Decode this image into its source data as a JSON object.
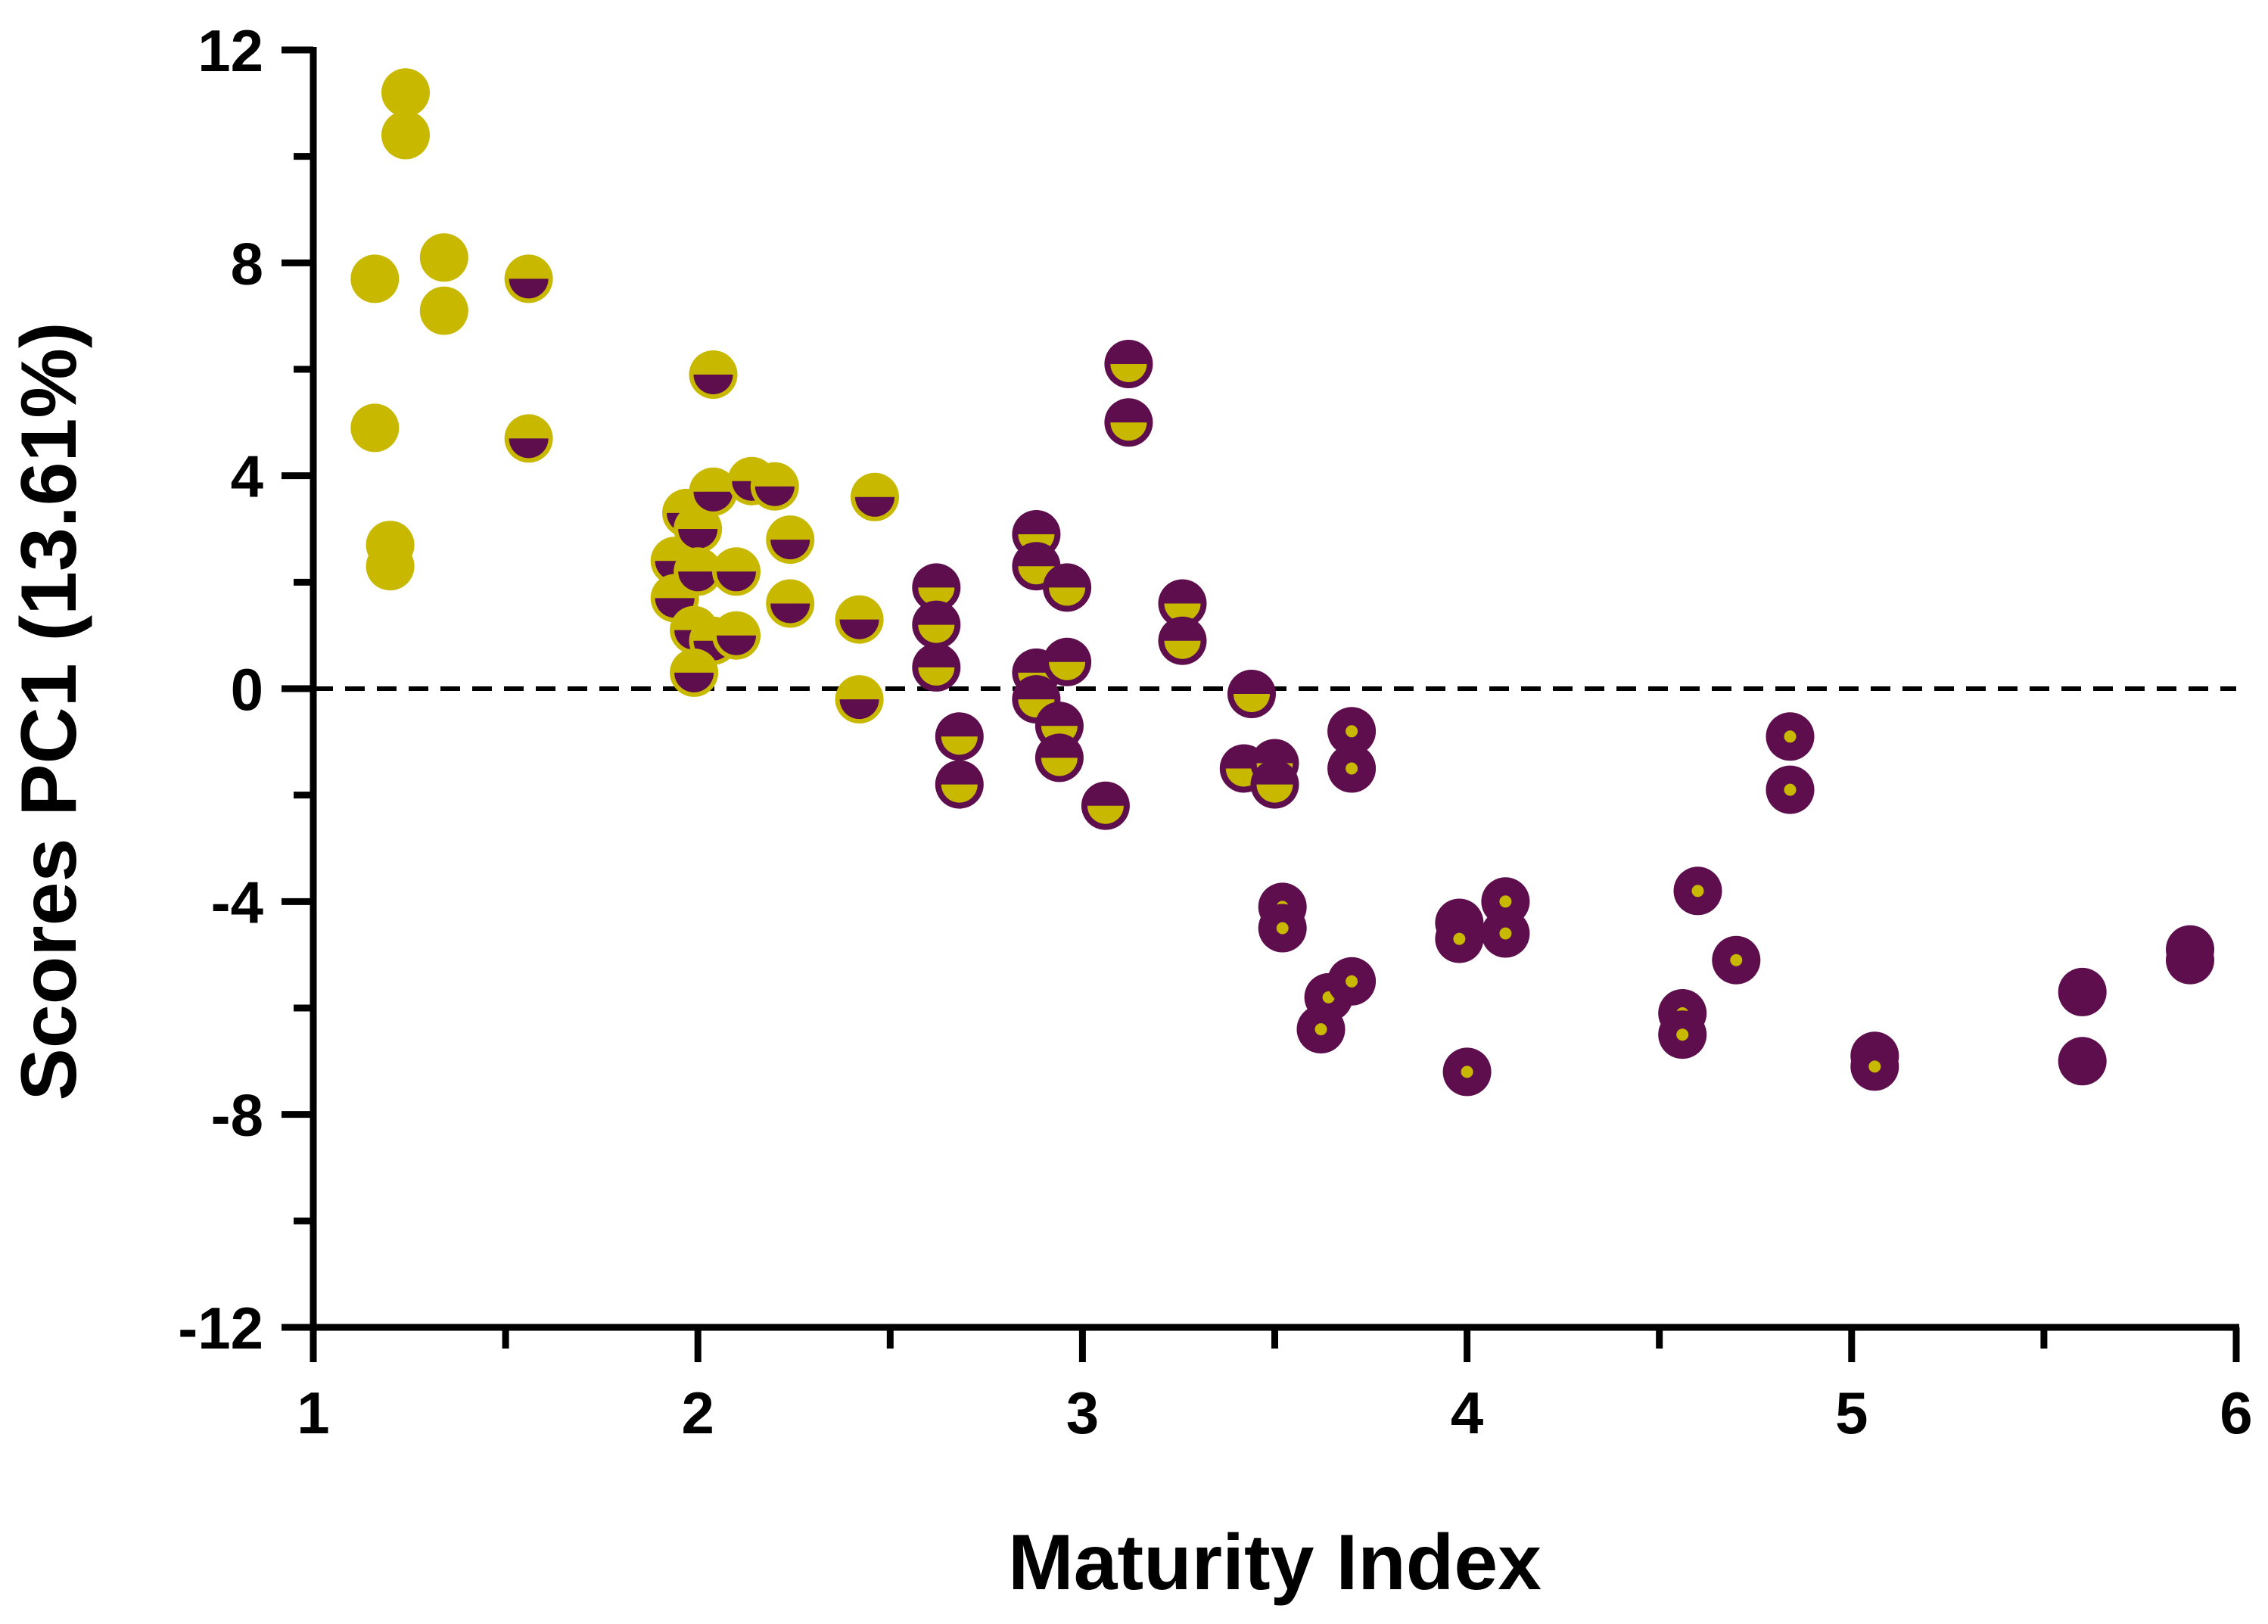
{
  "chart_data": {
    "type": "scatter",
    "title": "",
    "xlabel": "Maturity Index",
    "ylabel": "Scores PC1 (13.61%)",
    "xlim": [
      1,
      6
    ],
    "ylim": [
      -12,
      12
    ],
    "x_ticks": [
      "1",
      "2",
      "3",
      "4",
      "5",
      "6"
    ],
    "y_ticks": [
      "12",
      "8",
      "4",
      "0",
      "-4",
      "-8",
      "-12"
    ],
    "reference_line": {
      "y": 0,
      "style": "dashed"
    },
    "colors": {
      "yellow": "#C8B900",
      "purple": "#5E0E4C",
      "axis": "#000000"
    },
    "marker_legend": {
      "full": "solid yellow",
      "half": "yellow top / purple bottom",
      "inverse_half": "purple top / yellow bottom",
      "dot": "purple with small yellow center",
      "solid": "solid purple"
    },
    "points": [
      {
        "x": 1.24,
        "y": 11.2,
        "m": "full"
      },
      {
        "x": 1.24,
        "y": 10.4,
        "m": "full"
      },
      {
        "x": 1.34,
        "y": 8.1,
        "m": "full"
      },
      {
        "x": 1.34,
        "y": 7.1,
        "m": "full"
      },
      {
        "x": 1.16,
        "y": 7.7,
        "m": "full"
      },
      {
        "x": 1.16,
        "y": 4.9,
        "m": "full"
      },
      {
        "x": 1.2,
        "y": 2.7,
        "m": "full"
      },
      {
        "x": 1.2,
        "y": 2.3,
        "m": "full"
      },
      {
        "x": 1.56,
        "y": 7.7,
        "m": "half"
      },
      {
        "x": 1.56,
        "y": 4.7,
        "m": "half"
      },
      {
        "x": 2.04,
        "y": 5.9,
        "m": "half"
      },
      {
        "x": 1.94,
        "y": 2.4,
        "m": "half"
      },
      {
        "x": 1.94,
        "y": 1.7,
        "m": "half"
      },
      {
        "x": 1.97,
        "y": 3.3,
        "m": "half"
      },
      {
        "x": 2.0,
        "y": 3.0,
        "m": "half"
      },
      {
        "x": 2.04,
        "y": 3.7,
        "m": "half"
      },
      {
        "x": 2.0,
        "y": 2.2,
        "m": "half"
      },
      {
        "x": 2.1,
        "y": 2.2,
        "m": "half"
      },
      {
        "x": 1.99,
        "y": 1.1,
        "m": "half"
      },
      {
        "x": 2.04,
        "y": 0.9,
        "m": "half"
      },
      {
        "x": 2.1,
        "y": 1.0,
        "m": "half"
      },
      {
        "x": 1.99,
        "y": 0.3,
        "m": "half"
      },
      {
        "x": 2.14,
        "y": 3.9,
        "m": "half"
      },
      {
        "x": 2.2,
        "y": 3.8,
        "m": "half"
      },
      {
        "x": 2.24,
        "y": 2.8,
        "m": "half"
      },
      {
        "x": 2.24,
        "y": 1.6,
        "m": "half"
      },
      {
        "x": 2.46,
        "y": 3.6,
        "m": "half"
      },
      {
        "x": 2.42,
        "y": 1.3,
        "m": "half"
      },
      {
        "x": 2.42,
        "y": -0.2,
        "m": "half"
      },
      {
        "x": 2.62,
        "y": 1.9,
        "m": "inverse_half"
      },
      {
        "x": 2.62,
        "y": 1.2,
        "m": "inverse_half"
      },
      {
        "x": 2.62,
        "y": 0.4,
        "m": "inverse_half"
      },
      {
        "x": 2.68,
        "y": -0.9,
        "m": "inverse_half"
      },
      {
        "x": 2.68,
        "y": -1.8,
        "m": "inverse_half"
      },
      {
        "x": 2.88,
        "y": 2.9,
        "m": "inverse_half"
      },
      {
        "x": 2.88,
        "y": 2.3,
        "m": "inverse_half"
      },
      {
        "x": 2.96,
        "y": 1.9,
        "m": "inverse_half"
      },
      {
        "x": 2.88,
        "y": 0.3,
        "m": "inverse_half"
      },
      {
        "x": 2.88,
        "y": -0.2,
        "m": "inverse_half"
      },
      {
        "x": 2.96,
        "y": 0.5,
        "m": "inverse_half"
      },
      {
        "x": 2.94,
        "y": -0.7,
        "m": "inverse_half"
      },
      {
        "x": 2.94,
        "y": -1.3,
        "m": "inverse_half"
      },
      {
        "x": 3.06,
        "y": -2.2,
        "m": "inverse_half"
      },
      {
        "x": 3.12,
        "y": 6.1,
        "m": "inverse_half"
      },
      {
        "x": 3.12,
        "y": 5.0,
        "m": "inverse_half"
      },
      {
        "x": 3.26,
        "y": 1.6,
        "m": "inverse_half"
      },
      {
        "x": 3.26,
        "y": 0.9,
        "m": "inverse_half"
      },
      {
        "x": 3.44,
        "y": -0.1,
        "m": "inverse_half"
      },
      {
        "x": 3.42,
        "y": -1.5,
        "m": "inverse_half"
      },
      {
        "x": 3.5,
        "y": -1.4,
        "m": "inverse_half"
      },
      {
        "x": 3.5,
        "y": -1.8,
        "m": "inverse_half"
      },
      {
        "x": 3.7,
        "y": -0.8,
        "m": "dot"
      },
      {
        "x": 3.7,
        "y": -1.5,
        "m": "dot"
      },
      {
        "x": 3.52,
        "y": -4.1,
        "m": "dot"
      },
      {
        "x": 3.52,
        "y": -4.5,
        "m": "dot"
      },
      {
        "x": 3.64,
        "y": -5.8,
        "m": "dot"
      },
      {
        "x": 3.62,
        "y": -6.4,
        "m": "dot"
      },
      {
        "x": 3.7,
        "y": -5.5,
        "m": "dot"
      },
      {
        "x": 3.98,
        "y": -4.4,
        "m": "dot"
      },
      {
        "x": 3.98,
        "y": -4.7,
        "m": "dot"
      },
      {
        "x": 4.1,
        "y": -4.0,
        "m": "dot"
      },
      {
        "x": 4.1,
        "y": -4.6,
        "m": "dot"
      },
      {
        "x": 4.0,
        "y": -7.2,
        "m": "dot"
      },
      {
        "x": 4.6,
        "y": -3.8,
        "m": "dot"
      },
      {
        "x": 4.7,
        "y": -5.1,
        "m": "dot"
      },
      {
        "x": 4.56,
        "y": -6.1,
        "m": "dot"
      },
      {
        "x": 4.56,
        "y": -6.5,
        "m": "dot"
      },
      {
        "x": 4.84,
        "y": -0.9,
        "m": "dot"
      },
      {
        "x": 4.84,
        "y": -1.9,
        "m": "dot"
      },
      {
        "x": 5.06,
        "y": -6.9,
        "m": "dot"
      },
      {
        "x": 5.06,
        "y": -7.1,
        "m": "dot"
      },
      {
        "x": 5.6,
        "y": -5.7,
        "m": "solid"
      },
      {
        "x": 5.6,
        "y": -7.0,
        "m": "solid"
      },
      {
        "x": 5.88,
        "y": -4.9,
        "m": "solid"
      },
      {
        "x": 5.88,
        "y": -5.1,
        "m": "solid"
      }
    ]
  }
}
